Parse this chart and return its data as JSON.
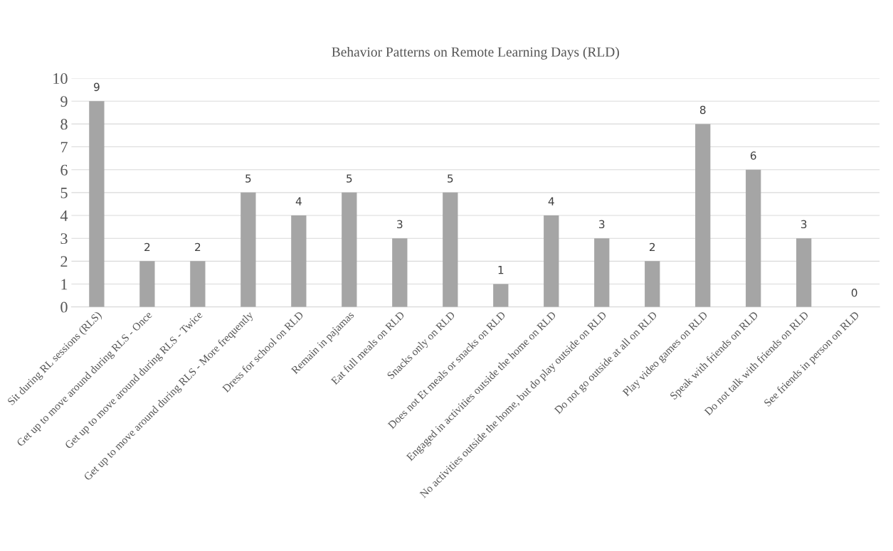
{
  "chart_data": {
    "type": "bar",
    "title": "Behavior Patterns on Remote Learning Days (RLD)",
    "categories": [
      "Sit during RL sessions (RLS)",
      "Get up to move around during RLS - Once",
      "Get up to move around during RLS - Twice",
      "Get up to move around during RLS - More frequently",
      "Dress for school on RLD",
      "Remain in pajamas",
      "Eat full meals on RLD",
      "Snacks only on RLD",
      "Does not Et meals or snacks on RLD",
      "Engaged in activities outside the home on RLD",
      "No activities outside the home, but do play outside on RLD",
      "Do not go outside at all on RLD",
      "Play video games on RLD",
      "Speak with friends on RLD",
      "Do not talk with friends on RLD",
      "See friends in person on RLD"
    ],
    "values": [
      9,
      2,
      2,
      5,
      4,
      5,
      3,
      5,
      1,
      4,
      3,
      2,
      8,
      6,
      3,
      0
    ],
    "color": "#a5a5a5",
    "ylim": [
      0,
      10
    ],
    "yticks": [
      0,
      1,
      2,
      3,
      4,
      5,
      6,
      7,
      8,
      9,
      10
    ],
    "grid": "y",
    "data_labels": true
  }
}
